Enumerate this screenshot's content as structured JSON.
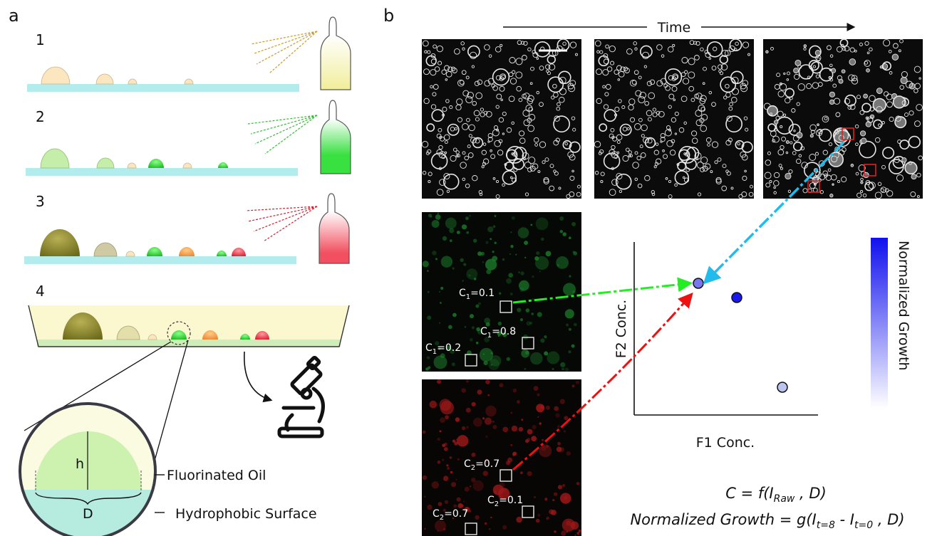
{
  "panel_a": {
    "letter": "a",
    "steps": [
      "1",
      "2",
      "3",
      "4"
    ],
    "inset": {
      "h_label": "h",
      "d_label": "D",
      "oil_label": "Fluorinated Oil",
      "surface_label": "Hydrophobic Surface"
    }
  },
  "panel_b": {
    "letter": "b",
    "time_label": "Time",
    "green_labels": [
      {
        "sub": "1",
        "value": "=0.1"
      },
      {
        "sub": "1",
        "value": "=0.8"
      },
      {
        "sub": "1",
        "value": "=0.2"
      }
    ],
    "red_labels": [
      {
        "sub": "2",
        "value": "=0.7"
      },
      {
        "sub": "2",
        "value": "=0.1"
      },
      {
        "sub": "2",
        "value": "=0.7"
      }
    ],
    "plot": {
      "xlabel": "F1 Conc.",
      "ylabel": "F2 Conc.",
      "colorbar_label": "Normalized Growth"
    },
    "equations": {
      "c_lhs": "C = f(I",
      "c_sub": "Raw",
      "c_rhs": " , D)",
      "g_lhs": "Normalized Growth = g(I",
      "g_sub1": "t=8",
      "g_mid": " - I",
      "g_sub2": "t=0",
      "g_rhs": " , D)"
    }
  },
  "colors": {
    "substrate": "#b3ecec",
    "oil": "#fbf7cf",
    "green": "#33dd44",
    "red": "#ee4455",
    "arrow_green": "#22ee22",
    "arrow_red": "#ee1111",
    "arrow_cyan": "#22bbee",
    "point_dark": "#1a1aee",
    "point_mid": "#7777ee",
    "point_light": "#bbc4ee"
  }
}
